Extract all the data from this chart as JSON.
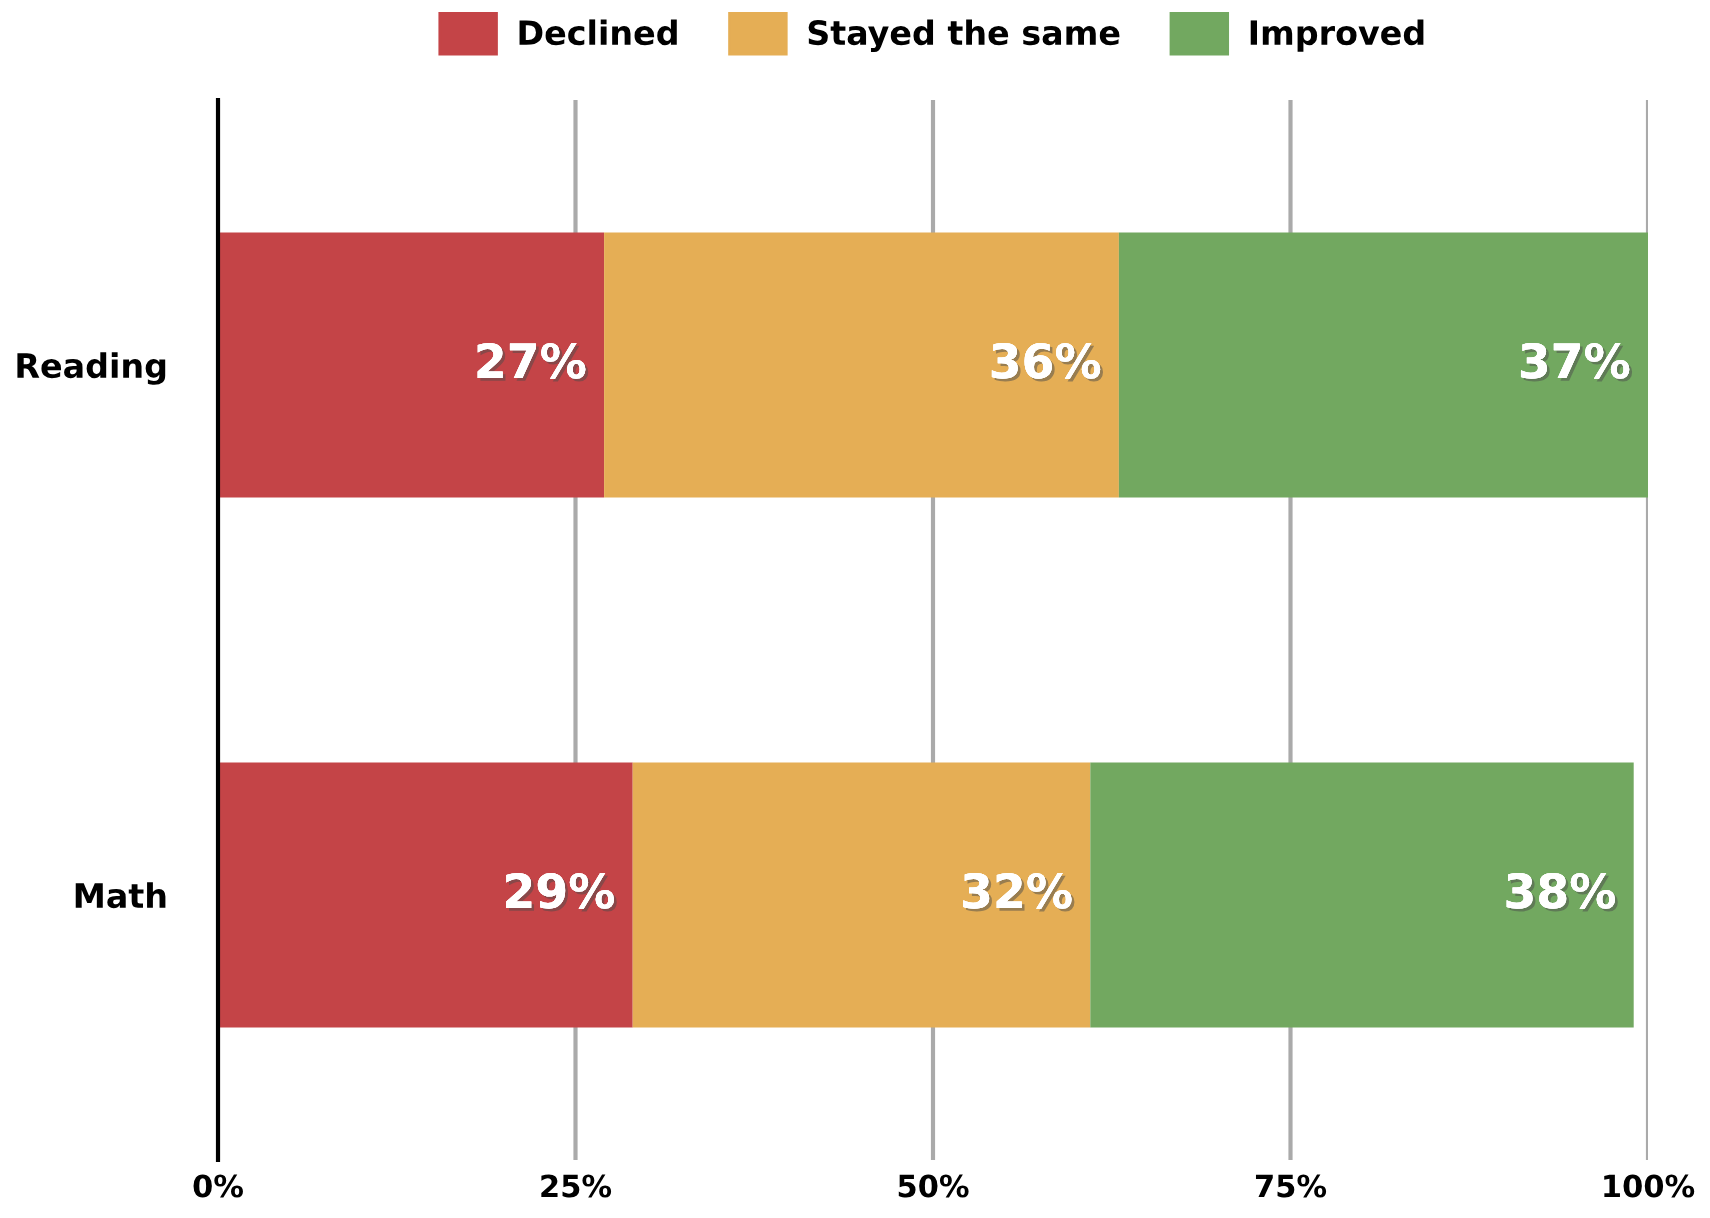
{
  "chart_data": {
    "type": "bar",
    "orientation": "horizontal",
    "stacked": true,
    "categories": [
      "Reading",
      "Math"
    ],
    "series": [
      {
        "name": "Declined",
        "color": "#c44447",
        "values": [
          27,
          29
        ],
        "value_labels": [
          "27%",
          "29%"
        ]
      },
      {
        "name": "Stayed the same",
        "color": "#e5ae55",
        "values": [
          36,
          32
        ],
        "value_labels": [
          "36%",
          "32%"
        ]
      },
      {
        "name": "Improved",
        "color": "#72a860",
        "values": [
          37,
          38
        ],
        "value_labels": [
          "37%",
          "38%"
        ]
      }
    ],
    "xlim": [
      0,
      100
    ],
    "xticks": [
      {
        "value": 0,
        "label": "0%"
      },
      {
        "value": 25,
        "label": "25%"
      },
      {
        "value": 50,
        "label": "50%"
      },
      {
        "value": 75,
        "label": "75%"
      },
      {
        "value": 100,
        "label": "100%"
      }
    ],
    "grid": "x",
    "legend": "top"
  }
}
